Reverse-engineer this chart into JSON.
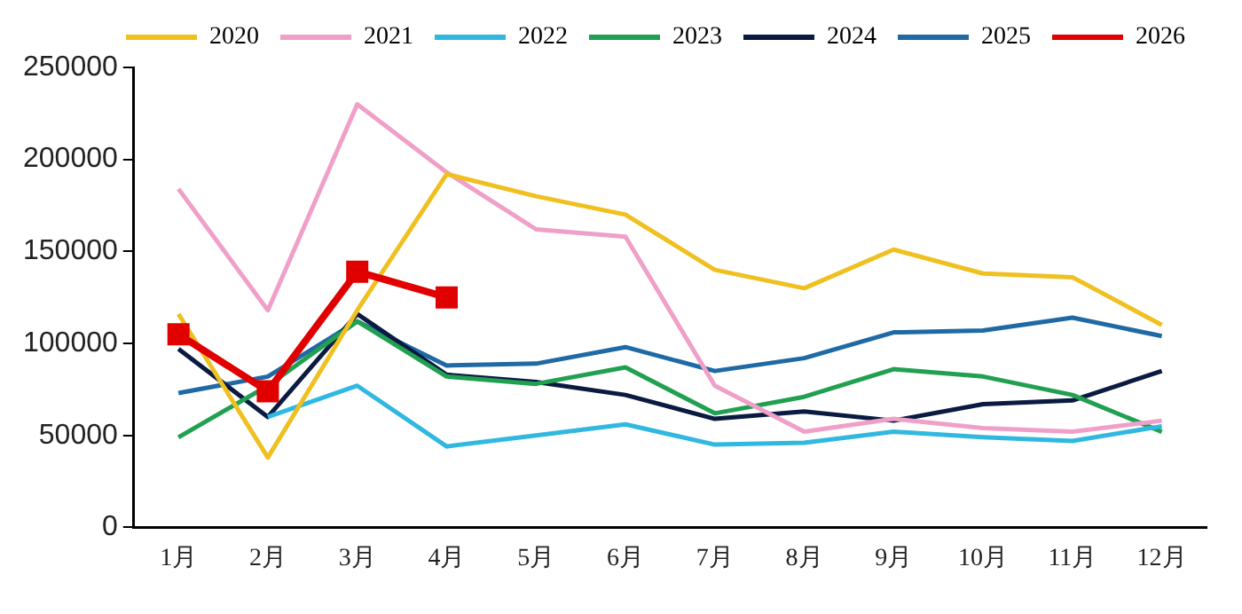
{
  "chart_data": {
    "type": "line",
    "categories": [
      "1月",
      "2月",
      "3月",
      "4月",
      "5月",
      "6月",
      "7月",
      "8月",
      "9月",
      "10月",
      "11月",
      "12月"
    ],
    "series": [
      {
        "name": "2020",
        "color": "#f0c020",
        "marker": "none",
        "values": [
          116000,
          38000,
          118000,
          192000,
          180000,
          170000,
          140000,
          130000,
          151000,
          138000,
          136000,
          110000
        ]
      },
      {
        "name": "2021",
        "color": "#f0a0c8",
        "marker": "none",
        "values": [
          184000,
          118000,
          230000,
          193000,
          162000,
          158000,
          77000,
          52000,
          59000,
          54000,
          52000,
          58000
        ]
      },
      {
        "name": "2022",
        "color": "#30b8e0",
        "marker": "none",
        "values": [
          null,
          60000,
          77000,
          44000,
          50000,
          56000,
          45000,
          46000,
          52000,
          49000,
          47000,
          55000
        ]
      },
      {
        "name": "2023",
        "color": "#20a050",
        "marker": "none",
        "values": [
          49000,
          77000,
          112000,
          82000,
          78000,
          87000,
          62000,
          71000,
          86000,
          82000,
          72000,
          52000
        ]
      },
      {
        "name": "2024",
        "color": "#0a1a40",
        "marker": "none",
        "values": [
          97000,
          60000,
          116000,
          83000,
          79000,
          72000,
          59000,
          63000,
          58000,
          67000,
          69000,
          85000
        ]
      },
      {
        "name": "2025",
        "color": "#1f6aa5",
        "marker": "none",
        "values": [
          73000,
          82000,
          112000,
          88000,
          89000,
          98000,
          85000,
          92000,
          106000,
          107000,
          114000,
          104000
        ]
      },
      {
        "name": "2026",
        "color": "#e00000",
        "marker": "square",
        "values": [
          105000,
          74000,
          139000,
          125000,
          null,
          null,
          null,
          null,
          null,
          null,
          null,
          null
        ]
      }
    ],
    "ylim": [
      0,
      250000
    ],
    "yticks": [
      0,
      50000,
      100000,
      150000,
      200000,
      250000
    ],
    "grid": false,
    "legend": "top",
    "line_style": "solid"
  }
}
